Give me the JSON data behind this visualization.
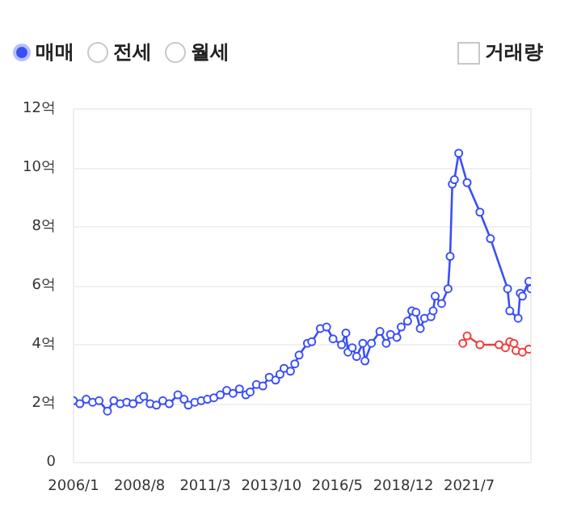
{
  "chart_data": {
    "type": "line",
    "legend": "top left",
    "marker": "circle",
    "line_style": "solid",
    "grid": "y",
    "annotations": [
      "전세",
      "월세",
      "거래량"
    ],
    "xlim": [
      "2006-01",
      "2023-12"
    ],
    "xticks": [
      {
        "value": "2006-01",
        "label": "2006/1"
      },
      {
        "value": "2008-08",
        "label": "2008/8"
      },
      {
        "value": "2011-03",
        "label": "2011/3"
      },
      {
        "value": "2013-10",
        "label": "2013/10"
      },
      {
        "value": "2016-05",
        "label": "2016/5"
      },
      {
        "value": "2018-12",
        "label": "2018/12"
      },
      {
        "value": "2021-07",
        "label": "2021/7"
      }
    ],
    "ylim": [
      0,
      12
    ],
    "yticks": [
      0,
      {
        "value": 2,
        "label": "2억"
      },
      {
        "value": 4,
        "label": "4억"
      },
      {
        "value": 6,
        "label": "6억"
      },
      {
        "value": 8,
        "label": "8억"
      },
      {
        "value": 10,
        "label": "10억"
      },
      {
        "value": 12,
        "label": "12억"
      }
    ],
    "series": [
      {
        "name": "매매",
        "color": "#3a4ff5",
        "x": [
          "2006-01",
          "2006-04",
          "2006-07",
          "2006-10",
          "2007-01",
          "2007-05",
          "2007-08",
          "2007-11",
          "2008-02",
          "2008-05",
          "2008-08",
          "2008-10",
          "2009-01",
          "2009-04",
          "2009-07",
          "2009-10",
          "2010-02",
          "2010-05",
          "2010-07",
          "2010-10",
          "2011-01",
          "2011-04",
          "2011-07",
          "2011-10",
          "2012-01",
          "2012-04",
          "2012-07",
          "2012-10",
          "2012-12",
          "2013-03",
          "2013-06",
          "2013-09",
          "2013-12",
          "2014-02",
          "2014-04",
          "2014-07",
          "2014-09",
          "2014-11",
          "2015-03",
          "2015-05",
          "2015-09",
          "2015-12",
          "2016-03",
          "2016-07",
          "2016-09",
          "2016-10",
          "2016-12",
          "2017-02",
          "2017-05",
          "2017-06",
          "2017-09",
          "2018-01",
          "2018-04",
          "2018-06",
          "2018-09",
          "2018-11",
          "2019-02",
          "2019-04",
          "2019-06",
          "2019-08",
          "2019-10",
          "2020-01",
          "2020-02",
          "2020-03",
          "2020-06",
          "2020-09",
          "2020-10",
          "2020-11",
          "2020-12",
          "2021-02",
          "2021-06",
          "2021-12",
          "2022-05",
          "2023-01",
          "2023-02",
          "2023-06",
          "2023-07",
          "2023-08",
          "2023-11",
          "2023-12"
        ],
        "values": [
          2.1,
          2.0,
          2.15,
          2.05,
          2.1,
          1.75,
          2.1,
          2.0,
          2.05,
          2.0,
          2.15,
          2.25,
          2.0,
          1.95,
          2.1,
          2.0,
          2.3,
          2.15,
          1.95,
          2.05,
          2.1,
          2.15,
          2.2,
          2.3,
          2.45,
          2.35,
          2.5,
          2.3,
          2.4,
          2.65,
          2.6,
          2.9,
          2.8,
          3.0,
          3.2,
          3.1,
          3.35,
          3.65,
          4.05,
          4.1,
          4.55,
          4.6,
          4.2,
          4.0,
          4.4,
          3.75,
          3.9,
          3.6,
          4.05,
          3.45,
          4.05,
          4.45,
          4.05,
          4.35,
          4.25,
          4.6,
          4.8,
          5.15,
          5.1,
          4.55,
          4.9,
          4.95,
          5.15,
          5.65,
          5.4,
          5.9,
          7.0,
          9.45,
          9.6,
          10.5,
          9.5,
          8.5,
          7.6,
          5.9,
          5.15,
          4.9,
          5.75,
          5.65,
          6.15,
          5.9
        ]
      },
      {
        "color": "#f03c3c",
        "x": [
          "2021-04",
          "2021-06",
          "2021-12",
          "2022-09",
          "2022-12",
          "2023-02",
          "2023-04",
          "2023-05",
          "2023-08",
          "2023-11"
        ],
        "values": [
          4.05,
          4.3,
          4.0,
          4.0,
          3.9,
          4.1,
          4.05,
          3.8,
          3.75,
          3.85
        ]
      }
    ]
  }
}
